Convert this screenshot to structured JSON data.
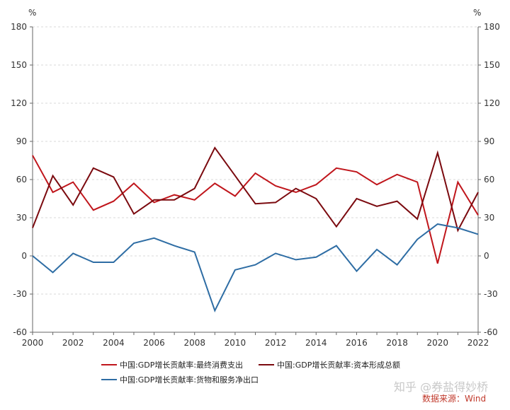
{
  "chart_data": {
    "type": "line",
    "x": [
      2000,
      2001,
      2002,
      2003,
      2004,
      2005,
      2006,
      2007,
      2008,
      2009,
      2010,
      2011,
      2012,
      2013,
      2014,
      2015,
      2016,
      2017,
      2018,
      2019,
      2020,
      2021,
      2022
    ],
    "xticks": [
      "2000",
      "2002",
      "2004",
      "2006",
      "2008",
      "2010",
      "2012",
      "2014",
      "2016",
      "2018",
      "2020",
      "2022"
    ],
    "yticks": [
      "180",
      "150",
      "120",
      "90",
      "60",
      "30",
      "0",
      "-30",
      "-60"
    ],
    "ylim": [
      -60,
      180
    ],
    "y_unit_left": "%",
    "y_unit_right": "%",
    "grid": "horizontal-dashed",
    "legend_position": "bottom",
    "series": [
      {
        "name": "中国:GDP增长贡献率:最终消费支出",
        "color": "#c0161c",
        "values": [
          79,
          50,
          58,
          36,
          43,
          57,
          42,
          48,
          44,
          57,
          47,
          65,
          55,
          50,
          56,
          69,
          66,
          56,
          64,
          58,
          -6,
          58,
          32
        ]
      },
      {
        "name": "中国:GDP增长贡献率:资本形成总额",
        "color": "#7b0a0f",
        "values": [
          22,
          63,
          40,
          69,
          62,
          33,
          44,
          44,
          53,
          85,
          63,
          41,
          42,
          53,
          45,
          23,
          45,
          39,
          43,
          29,
          81,
          20,
          50
        ]
      },
      {
        "name": "中国:GDP增长贡献率:货物和服务净出口",
        "color": "#2e6da4",
        "values": [
          0,
          -13,
          2,
          -5,
          -5,
          10,
          14,
          8,
          3,
          -43,
          -11,
          -7,
          2,
          -3,
          -1,
          8,
          -12,
          5,
          -7,
          13,
          25,
          22,
          17
        ]
      }
    ]
  },
  "watermark": "知乎 @券盐得妙桥",
  "source": "数据来源：Wind"
}
